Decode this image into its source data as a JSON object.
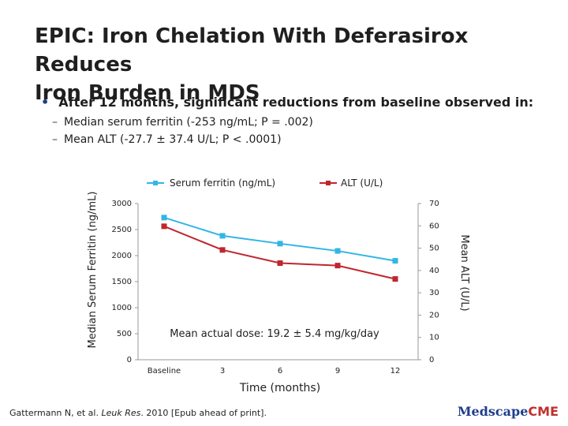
{
  "slide": {
    "title_line1": "EPIC: Iron Chelation With Deferasirox Reduces",
    "title_line2": "Iron Burden in MDS",
    "bullet": "After 12 months, significant reductions from baseline observed in:",
    "sub1": "Median serum ferritin (-253 ng/mL; P = .002)",
    "sub2": "Mean ALT (-27.7 ± 37.4 U/L; P < .0001)",
    "footer_authors": "Gattermann N, et al. ",
    "footer_journal": "Leuk Res",
    "footer_rest": ". 2010 [Epub ahead of print].",
    "logo_a": "Medscape",
    "logo_b": "CME"
  },
  "chart_data": {
    "type": "line",
    "categories": [
      "Baseline",
      "3",
      "6",
      "9",
      "12"
    ],
    "xlabel": "Time (months)",
    "ylabel": "Median Serum Ferritin (ng/mL)",
    "y2label": "Mean ALT (U/L)",
    "ylim": [
      0,
      3000
    ],
    "y2lim": [
      0,
      70
    ],
    "yticks": [
      0,
      500,
      1000,
      1500,
      2000,
      2500,
      3000
    ],
    "y2ticks": [
      0,
      10,
      20,
      30,
      40,
      50,
      60,
      70
    ],
    "annotation": "Mean actual dose: 19.2 ± 5.4 mg/kg/day",
    "series": [
      {
        "name": "Serum ferritin (ng/mL)",
        "axis": "left",
        "color": "#33b5e5",
        "values": [
          2730,
          2380,
          2230,
          2090,
          1900
        ]
      },
      {
        "name": "ALT (U/L)",
        "axis": "right",
        "color": "#c0262d",
        "values": [
          59.8,
          49.2,
          43.3,
          42.2,
          36.2
        ]
      }
    ],
    "legend": "top"
  }
}
